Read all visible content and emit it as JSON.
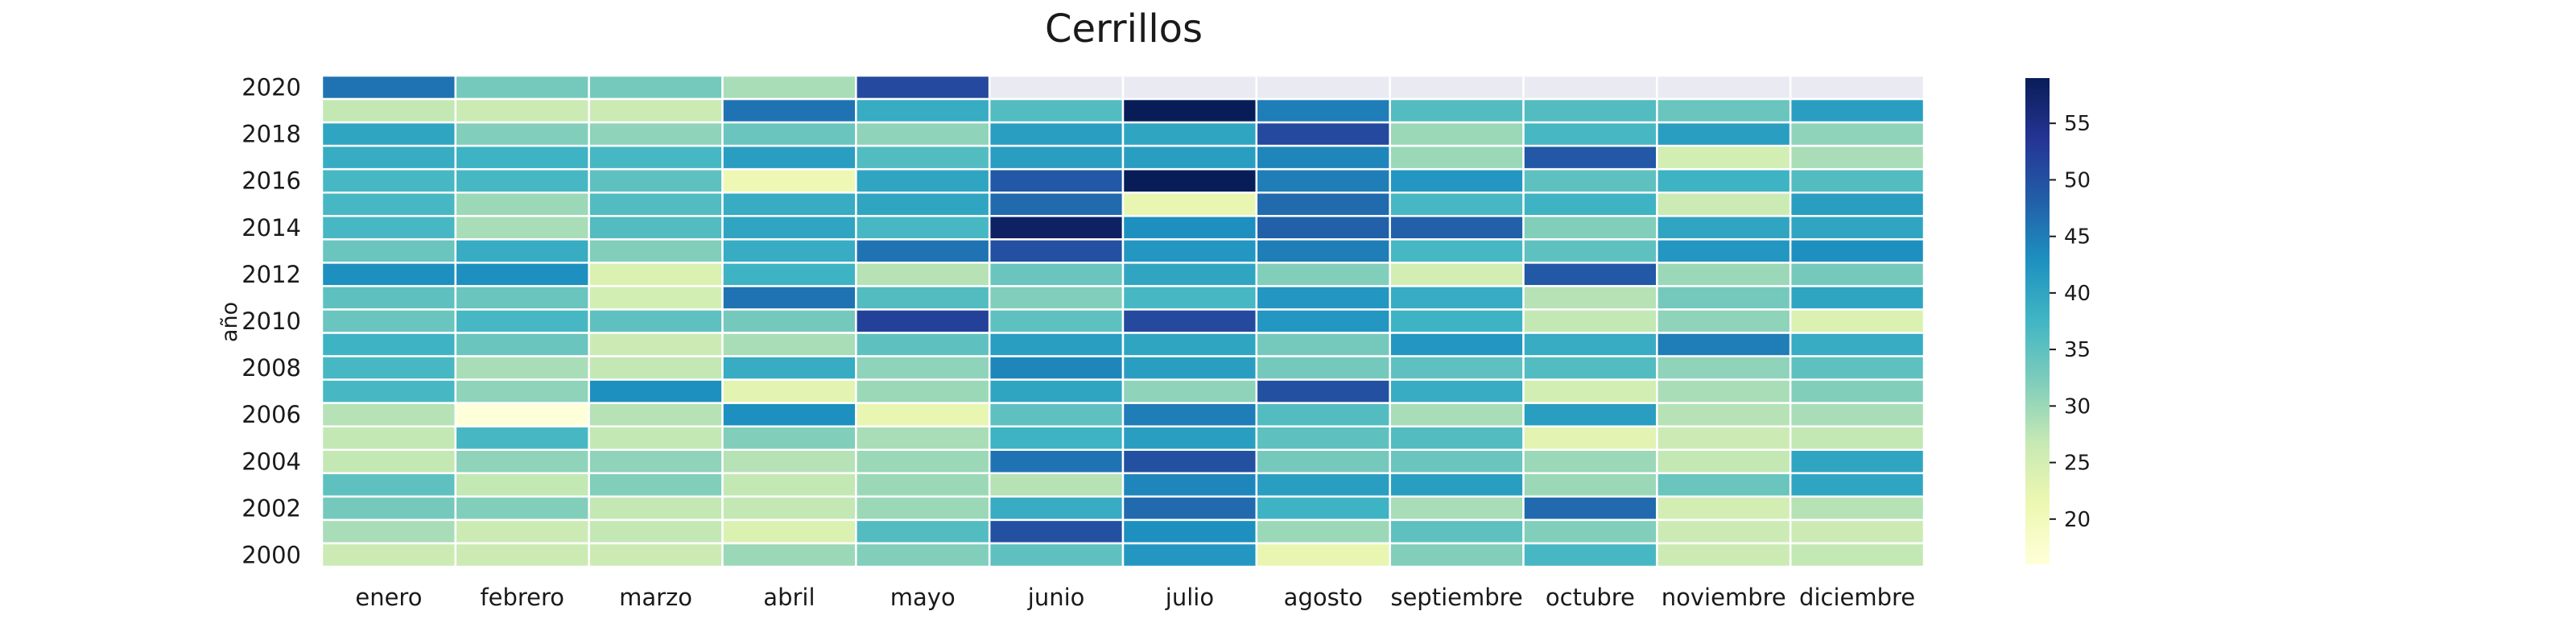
{
  "chart_data": {
    "type": "heatmap",
    "title": "Cerrillos",
    "xlabel": "",
    "ylabel": "año",
    "x_categories": [
      "enero",
      "febrero",
      "marzo",
      "abril",
      "mayo",
      "junio",
      "julio",
      "agosto",
      "septiembre",
      "octubre",
      "noviembre",
      "diciembre"
    ],
    "y_categories": [
      "2020",
      "2019",
      "2018",
      "2017",
      "2016",
      "2015",
      "2014",
      "2013",
      "2012",
      "2011",
      "2010",
      "2009",
      "2008",
      "2007",
      "2006",
      "2005",
      "2004",
      "2003",
      "2002",
      "2001",
      "2000"
    ],
    "y_tick_labels": [
      "2020",
      "2018",
      "2016",
      "2014",
      "2012",
      "2010",
      "2008",
      "2006",
      "2004",
      "2002",
      "2000"
    ],
    "missing_color": "#eaeaf2",
    "colorbar": {
      "vmin": 16,
      "vmax": 59,
      "ticks": [
        20,
        25,
        30,
        35,
        40,
        45,
        50,
        55
      ]
    },
    "colormap": "YlGnBu",
    "values": [
      [
        46,
        33,
        33,
        29,
        51,
        null,
        null,
        null,
        null,
        null,
        null,
        null
      ],
      [
        27,
        26,
        26,
        46,
        39,
        36,
        59,
        45,
        36,
        36,
        34,
        41
      ],
      [
        40,
        32,
        31,
        34,
        31,
        41,
        40,
        51,
        30,
        37,
        41,
        31
      ],
      [
        39,
        38,
        37,
        41,
        36,
        41,
        41,
        44,
        30,
        49,
        25,
        29
      ],
      [
        37,
        37,
        35,
        21,
        40,
        49,
        59,
        45,
        42,
        35,
        38,
        36
      ],
      [
        37,
        30,
        36,
        39,
        40,
        47,
        22,
        47,
        37,
        38,
        26,
        41
      ],
      [
        37,
        29,
        36,
        40,
        37,
        58,
        43,
        48,
        48,
        32,
        40,
        40
      ],
      [
        34,
        39,
        32,
        39,
        46,
        50,
        42,
        45,
        37,
        35,
        42,
        43
      ],
      [
        43,
        43,
        24,
        38,
        28,
        34,
        40,
        32,
        25,
        49,
        30,
        33
      ],
      [
        35,
        34,
        25,
        46,
        36,
        32,
        37,
        42,
        39,
        28,
        33,
        40
      ],
      [
        34,
        37,
        35,
        33,
        52,
        35,
        51,
        42,
        38,
        27,
        31,
        24
      ],
      [
        38,
        34,
        26,
        29,
        35,
        41,
        40,
        33,
        42,
        39,
        45,
        39
      ],
      [
        37,
        29,
        27,
        39,
        31,
        44,
        41,
        33,
        35,
        36,
        31,
        35
      ],
      [
        37,
        31,
        43,
        23,
        30,
        40,
        31,
        50,
        39,
        25,
        29,
        32
      ],
      [
        28,
        16,
        28,
        43,
        22,
        35,
        45,
        36,
        29,
        41,
        28,
        29
      ],
      [
        27,
        37,
        27,
        32,
        29,
        38,
        41,
        35,
        36,
        23,
        26,
        27
      ],
      [
        27,
        31,
        31,
        28,
        30,
        46,
        50,
        33,
        34,
        30,
        27,
        40
      ],
      [
        35,
        27,
        32,
        27,
        30,
        28,
        44,
        41,
        41,
        30,
        34,
        40
      ],
      [
        33,
        32,
        27,
        27,
        30,
        39,
        47,
        38,
        29,
        47,
        25,
        28
      ],
      [
        29,
        26,
        27,
        24,
        36,
        50,
        43,
        30,
        35,
        32,
        26,
        26
      ],
      [
        26,
        26,
        26,
        30,
        32,
        35,
        42,
        22,
        32,
        37,
        26,
        27
      ]
    ]
  }
}
